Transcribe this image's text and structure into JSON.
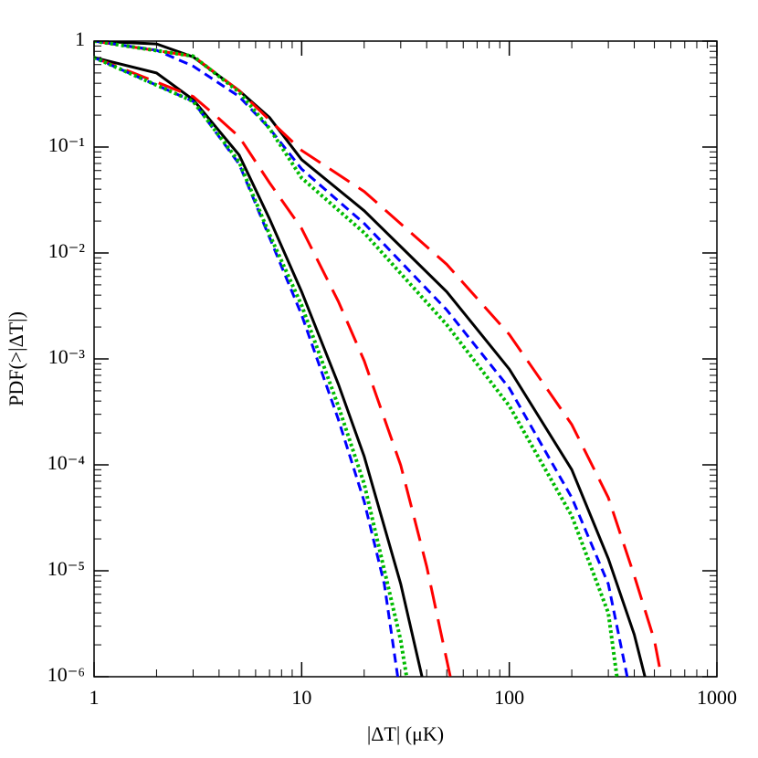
{
  "chart_data": {
    "type": "line",
    "xlabel": "|ΔT|  (μK)",
    "ylabel": "PDF(>|ΔT|)",
    "xscale": "log",
    "yscale": "log",
    "xlim": [
      1,
      1000
    ],
    "ylim": [
      1e-06,
      1
    ],
    "xticks": [
      1,
      10,
      100,
      1000
    ],
    "yticks": [
      {
        "value": 1e-06,
        "label": "10⁻⁶"
      },
      {
        "value": 1e-05,
        "label": "10⁻⁵"
      },
      {
        "value": 0.0001,
        "label": "10⁻⁴"
      },
      {
        "value": 0.001,
        "label": "10⁻³"
      },
      {
        "value": 0.01,
        "label": "10⁻²"
      },
      {
        "value": 0.1,
        "label": "10⁻¹"
      },
      1
    ],
    "series": [
      {
        "color": "#000000",
        "dash": "solid",
        "x": [
          1,
          2,
          3,
          5,
          7,
          10,
          20,
          30,
          50,
          100,
          200,
          300,
          400,
          450
        ],
        "values": [
          1,
          0.94,
          0.71,
          0.34,
          0.19,
          0.076,
          0.025,
          0.0115,
          0.0043,
          0.0008,
          9e-05,
          1.3e-05,
          2.5e-06,
          1e-06
        ]
      },
      {
        "color": "#ff0000",
        "dash": "long-dash",
        "x": [
          1,
          3,
          5,
          7,
          10,
          20,
          50,
          100,
          200,
          300,
          400,
          500,
          540
        ],
        "values": [
          1,
          0.72,
          0.34,
          0.18,
          0.093,
          0.038,
          0.0078,
          0.0017,
          0.00024,
          4.9e-05,
          9e-06,
          2.2e-06,
          1e-06
        ]
      },
      {
        "color": "#0000ff",
        "dash": "short-dash",
        "x": [
          1,
          2,
          3,
          5,
          7,
          10,
          20,
          50,
          100,
          200,
          300,
          370
        ],
        "values": [
          1,
          0.82,
          0.58,
          0.3,
          0.15,
          0.062,
          0.019,
          0.0029,
          0.00053,
          4.9e-05,
          7.5e-06,
          1e-06
        ]
      },
      {
        "color": "#00bb00",
        "dash": "dotted",
        "x": [
          1,
          3,
          5,
          7,
          10,
          20,
          50,
          100,
          200,
          300,
          330
        ],
        "values": [
          1,
          0.72,
          0.33,
          0.15,
          0.051,
          0.0155,
          0.0021,
          0.00036,
          3.3e-05,
          4e-06,
          1e-06
        ]
      },
      {
        "color": "#000000",
        "dash": "solid",
        "x": [
          1,
          2,
          3,
          5,
          7,
          10,
          15,
          20,
          30,
          38
        ],
        "values": [
          0.7,
          0.5,
          0.28,
          0.084,
          0.021,
          0.0043,
          0.00058,
          0.00012,
          7.5e-06,
          1e-06
        ]
      },
      {
        "color": "#ff0000",
        "dash": "long-dash",
        "x": [
          1,
          3,
          4,
          5,
          7,
          10,
          15,
          20,
          30,
          40,
          52
        ],
        "values": [
          0.7,
          0.3,
          0.185,
          0.125,
          0.046,
          0.017,
          0.0035,
          0.00096,
          9.9e-05,
          1.1e-05,
          1e-06
        ]
      },
      {
        "color": "#0000ff",
        "dash": "short-dash",
        "x": [
          1,
          3,
          5,
          7,
          10,
          15,
          20,
          25,
          29
        ],
        "values": [
          0.7,
          0.27,
          0.069,
          0.014,
          0.0026,
          0.00027,
          4.5e-05,
          7.5e-06,
          1e-06
        ]
      },
      {
        "color": "#00bb00",
        "dash": "dotted",
        "x": [
          1,
          3,
          5,
          7,
          10,
          15,
          20,
          30,
          32
        ],
        "values": [
          0.7,
          0.27,
          0.072,
          0.015,
          0.0032,
          0.00036,
          6.6e-05,
          2.2e-06,
          1e-06
        ]
      }
    ]
  }
}
